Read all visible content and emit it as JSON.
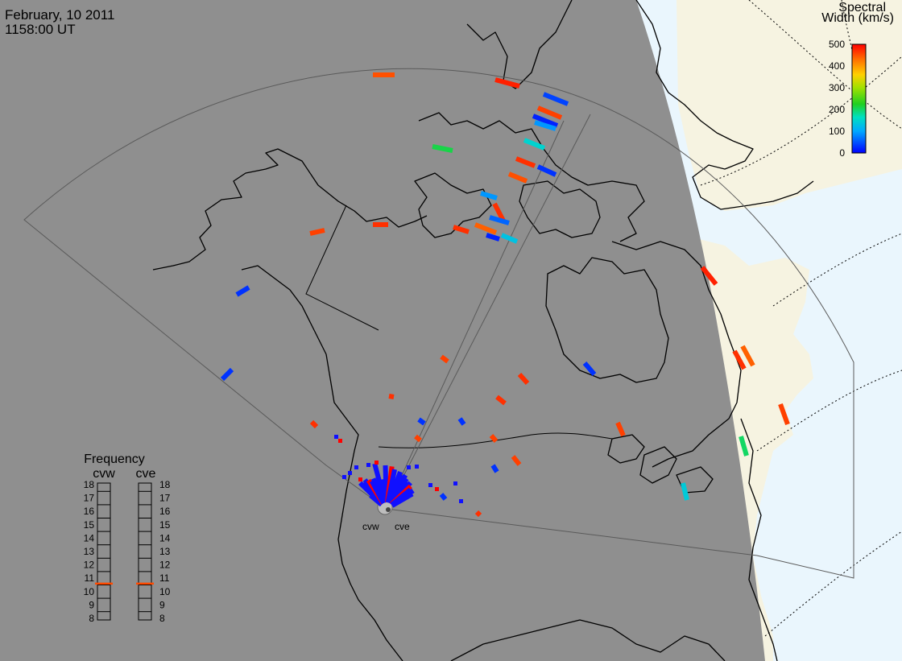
{
  "header": {
    "date": "February, 10 2011",
    "time": "1158:00 UT"
  },
  "colors": {
    "night": "#8f8f8f",
    "day_land": "#f6f3e1",
    "day_ocean": "#eaf6fd",
    "coast": "#000000"
  },
  "legend": {
    "title_line1": "Spectral",
    "title_line2": "Width (km/s)",
    "ticks": [
      "500",
      "400",
      "300",
      "200",
      "100",
      "0"
    ],
    "range": [
      0,
      500
    ]
  },
  "frequency": {
    "title": "Frequency",
    "radars": [
      "cvw",
      "cve"
    ],
    "ticks": [
      "18",
      "17",
      "16",
      "15",
      "14",
      "13",
      "12",
      "11",
      "10",
      "9",
      "8"
    ],
    "range": [
      8,
      18
    ],
    "values": [
      10.6,
      10.6
    ],
    "marker_color": "#ff4a00"
  },
  "stations": {
    "west": "cvw",
    "east": "cve"
  },
  "scatter": [
    {
      "sw": 450
    },
    {
      "sw": 480
    },
    {
      "sw": 40
    },
    {
      "sw": 460
    },
    {
      "sw": 20
    },
    {
      "sw": 90
    },
    {
      "sw": 150
    },
    {
      "sw": 210
    },
    {
      "sw": 470
    },
    {
      "sw": 30
    },
    {
      "sw": 450
    },
    {
      "sw": 90
    },
    {
      "sw": 470
    },
    {
      "sw": 60
    },
    {
      "sw": 440
    },
    {
      "sw": 20
    },
    {
      "sw": 130
    },
    {
      "sw": 470
    },
    {
      "sw": 460
    },
    {
      "sw": 470
    },
    {
      "sw": 30
    },
    {
      "sw": 30
    },
    {
      "sw": 480
    },
    {
      "sw": 470
    },
    {
      "sw": 440
    },
    {
      "sw": 460
    },
    {
      "sw": 200
    },
    {
      "sw": 140
    },
    {
      "sw": 460
    },
    {
      "sw": 30
    },
    {
      "sw": 470
    },
    {
      "sw": 470
    },
    {
      "sw": 30
    },
    {
      "sw": 460
    },
    {
      "sw": 460
    },
    {
      "sw": 460
    },
    {
      "sw": 30
    },
    {
      "sw": 470
    },
    {
      "sw": 470
    },
    {
      "sw": 30
    },
    {
      "sw": 460
    },
    {
      "sw": 470
    },
    {
      "sw": 30
    }
  ]
}
